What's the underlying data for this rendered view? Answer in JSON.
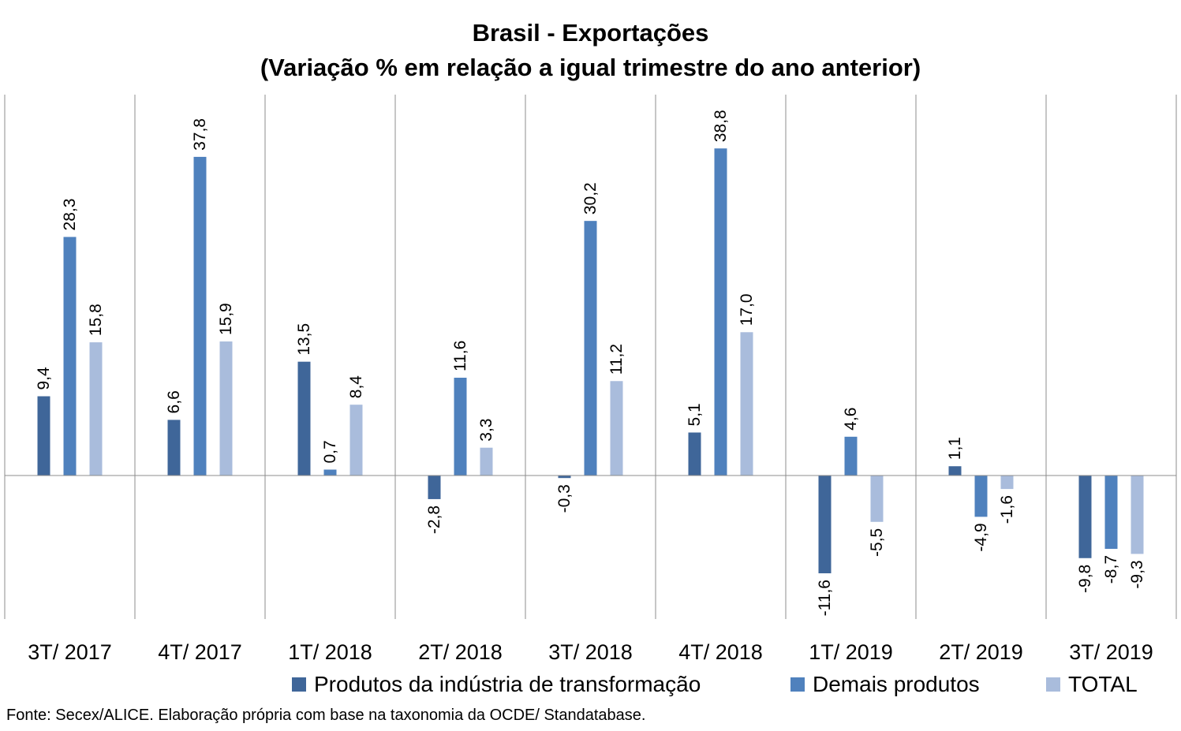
{
  "title_line1": "Brasil - Exportações",
  "title_line2": "(Variação % em relação a igual trimestre do ano anterior)",
  "source_note": "Fonte: Secex/ALICE. Elaboração própria com base na taxonomia da OCDE/ Standatabase.",
  "chart_data": {
    "type": "bar",
    "categories": [
      "3T/ 2017",
      "4T/ 2017",
      "1T/ 2018",
      "2T/ 2018",
      "3T/ 2018",
      "4T/ 2018",
      "1T/ 2019",
      "2T/ 2019",
      "3T/ 2019"
    ],
    "series": [
      {
        "name": "Produtos da indústria de transformação",
        "color": "#3F6699",
        "values": [
          9.4,
          6.6,
          13.5,
          -2.8,
          -0.3,
          5.1,
          -11.6,
          1.1,
          -9.8
        ],
        "labels": [
          "9,4",
          "6,6",
          "13,5",
          "-2,8",
          "-0,3",
          "5,1",
          "-11,6",
          "1,1",
          "-9,8"
        ]
      },
      {
        "name": "Demais produtos",
        "color": "#4F81BD",
        "values": [
          28.3,
          37.8,
          0.7,
          11.6,
          30.2,
          38.8,
          4.6,
          -4.9,
          -8.7
        ],
        "labels": [
          "28,3",
          "37,8",
          "0,7",
          "11,6",
          "30,2",
          "38,8",
          "4,6",
          "-4,9",
          "-8,7"
        ]
      },
      {
        "name": "TOTAL",
        "color": "#A9BCDC",
        "values": [
          15.8,
          15.9,
          8.4,
          3.3,
          11.2,
          17.0,
          -5.5,
          -1.6,
          -9.3
        ],
        "labels": [
          "15,8",
          "15,9",
          "8,4",
          "3,3",
          "11,2",
          "17,0",
          "-5,5",
          "-1,6",
          "-9,3"
        ]
      }
    ],
    "ylim": [
      -17,
      45
    ],
    "grid": "vertical category separators",
    "legend": "bottom",
    "data_labels": "rotated vertical"
  }
}
